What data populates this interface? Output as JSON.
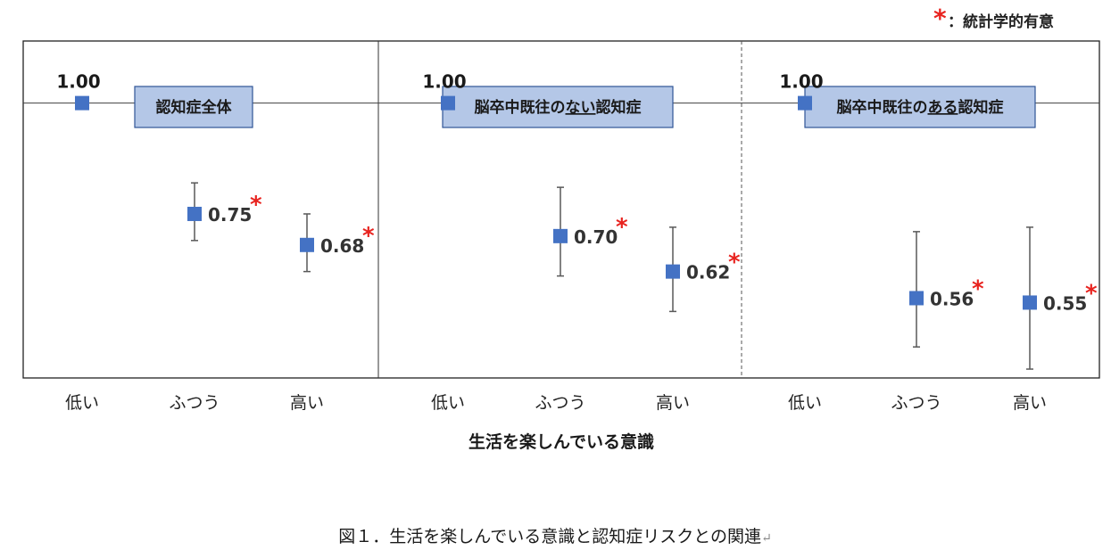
{
  "legend": {
    "mark": "*",
    "text": "：統計学的有意"
  },
  "chart_data": [
    {
      "type": "scatter",
      "title": "認知症全体",
      "title_underline": "",
      "categories": [
        "低い",
        "ふつう",
        "高い"
      ],
      "values": [
        1.0,
        0.75,
        0.68
      ],
      "value_labels": [
        "1.00",
        "0.75",
        "0.68"
      ],
      "ci": [
        null,
        [
          0.69,
          0.82
        ],
        [
          0.62,
          0.75
        ]
      ],
      "significant": [
        false,
        true,
        true
      ],
      "reference_line": 1.0
    },
    {
      "type": "scatter",
      "title": "脳卒中既往のない認知症",
      "title_parts": [
        "脳卒中既往の",
        "ない",
        "認知症"
      ],
      "categories": [
        "低い",
        "ふつう",
        "高い"
      ],
      "values": [
        1.0,
        0.7,
        0.62
      ],
      "value_labels": [
        "1.00",
        "0.70",
        "0.62"
      ],
      "ci": [
        null,
        [
          0.61,
          0.81
        ],
        [
          0.53,
          0.72
        ]
      ],
      "significant": [
        false,
        true,
        true
      ],
      "reference_line": 1.0
    },
    {
      "type": "scatter",
      "title": "脳卒中既往のある認知症",
      "title_parts": [
        "脳卒中既往の",
        "ある",
        "認知症"
      ],
      "categories": [
        "低い",
        "ふつう",
        "高い"
      ],
      "values": [
        1.0,
        0.56,
        0.55
      ],
      "value_labels": [
        "1.00",
        "0.56",
        "0.55"
      ],
      "ci": [
        null,
        [
          0.45,
          0.71
        ],
        [
          0.4,
          0.72
        ]
      ],
      "significant": [
        false,
        true,
        true
      ],
      "reference_line": 1.0
    }
  ],
  "xlabel": "生活を楽しんでいる意識",
  "ylim": [
    0.38,
    1.14
  ],
  "colors": {
    "marker": "#4472c4",
    "box_fill": "#b4c7e7",
    "box_border": "#2f5597",
    "asterisk": "#e8231f",
    "line": "#404040",
    "error": "#595959"
  },
  "caption": "図１．生活を楽しんでいる意識と認知症リスクとの関連",
  "caption_mark": "↵"
}
